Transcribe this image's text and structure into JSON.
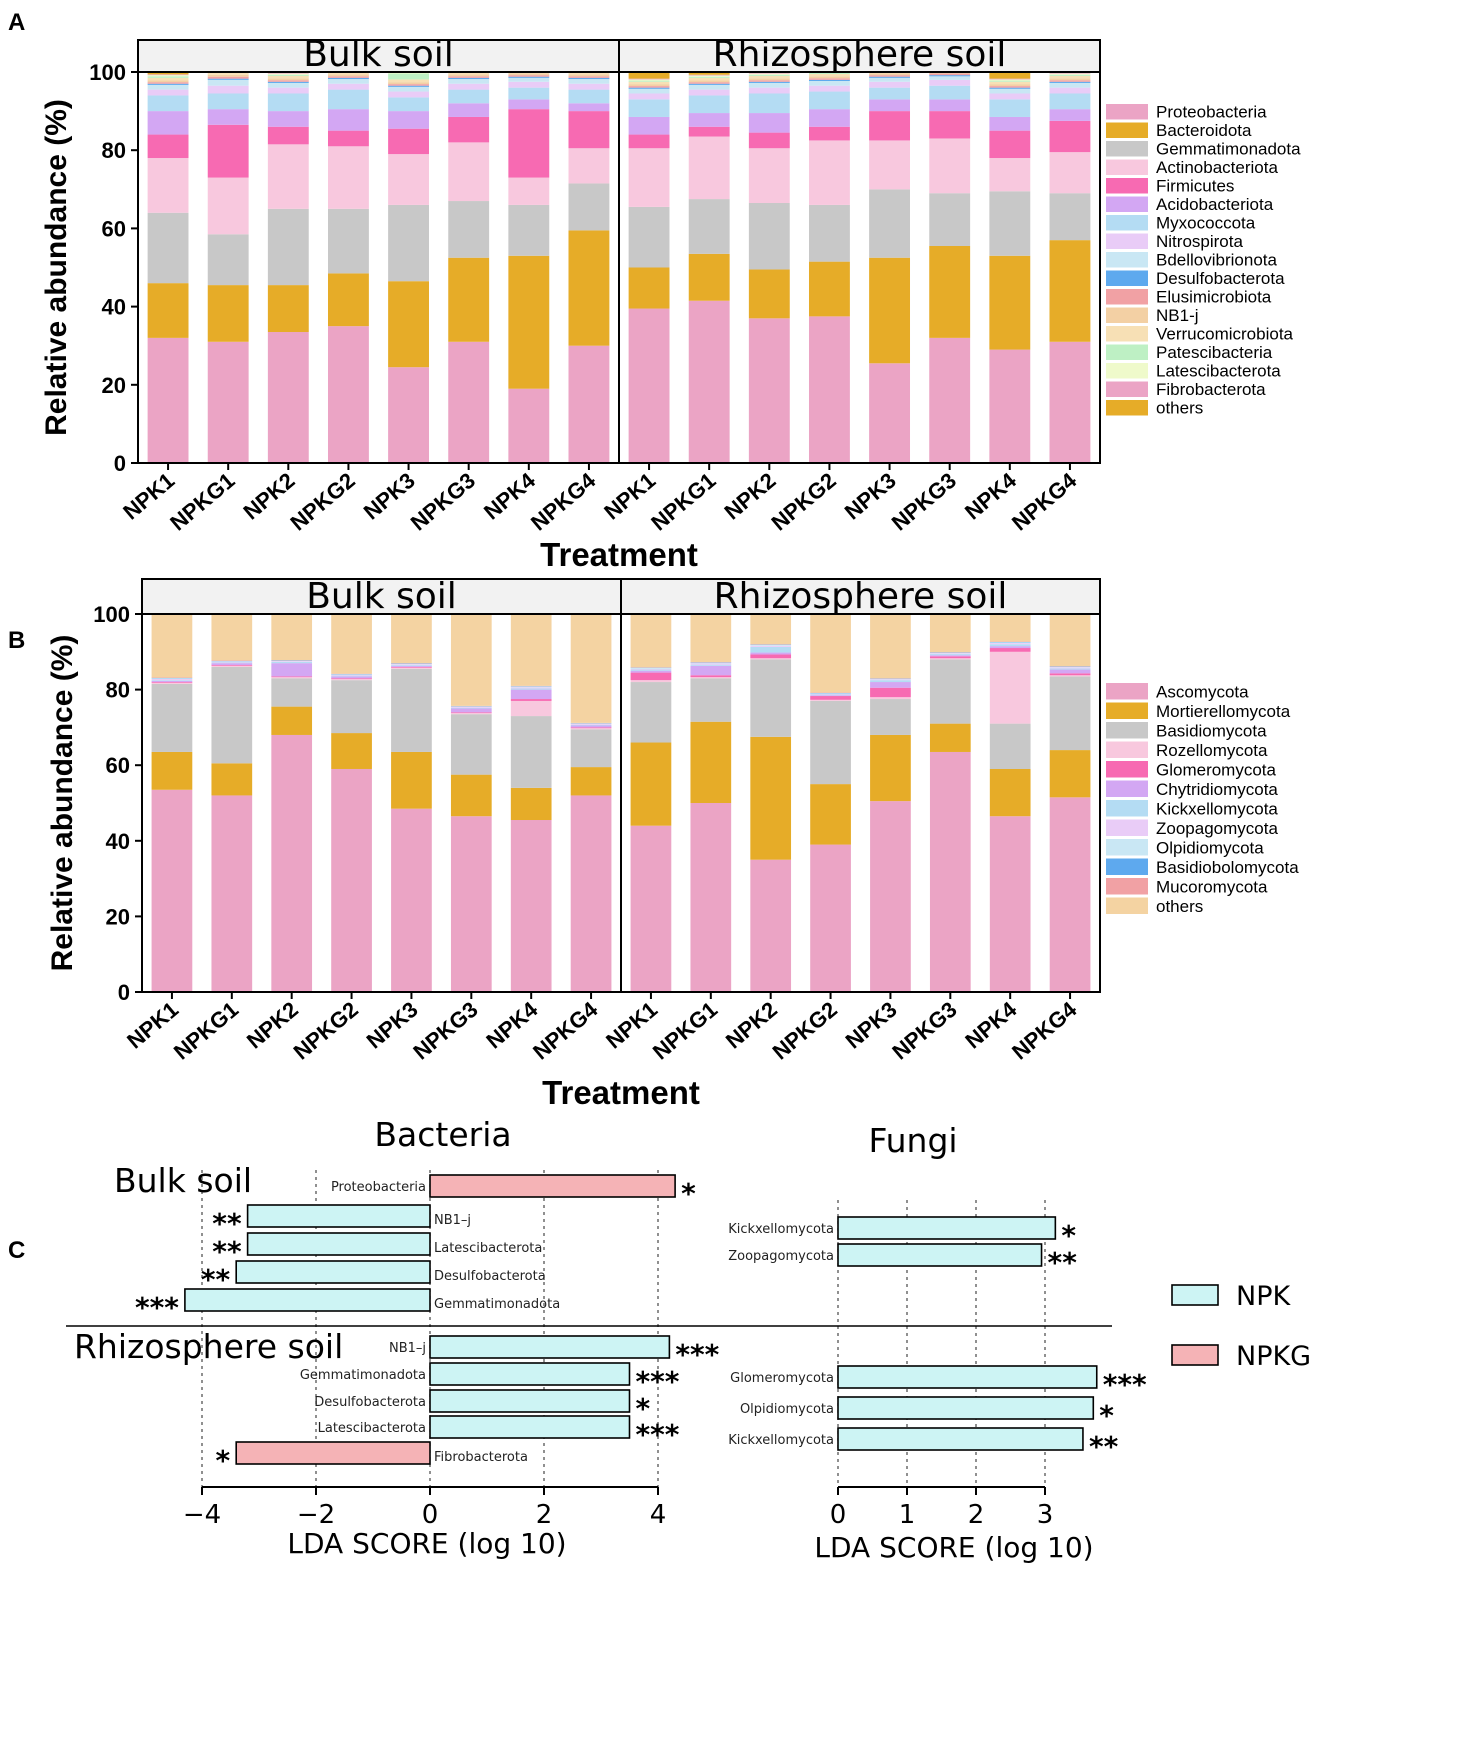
{
  "panels": {
    "a": "A",
    "b": "B",
    "c": "C"
  },
  "colors": {
    "bact": [
      "#EBA4C5",
      "#E6AC28",
      "#C8C8C8",
      "#F8C8DE",
      "#F76AB2",
      "#D3A7F3",
      "#B4DCF3",
      "#E9CCF7",
      "#C9E7F4",
      "#5EA9EE",
      "#F1A1A4",
      "#F3D0A4",
      "#F7E0B5",
      "#BEF0C4",
      "#EFFACB",
      "#EBA4C5",
      "#E6AC28"
    ],
    "fung": [
      "#EBA4C5",
      "#E6AC28",
      "#C8C8C8",
      "#F8C8DE",
      "#F76AB2",
      "#D3A7F3",
      "#B4DCF3",
      "#E9CCF7",
      "#C9E7F4",
      "#5EA9EE",
      "#F1A1A4",
      "#F4D3A2"
    ],
    "npk": "#CDF4F4",
    "npkg": "#F5B3B6"
  },
  "chart_data": [
    {
      "type": "bar",
      "subtype": "stacked-percent",
      "panel": "A",
      "facets": [
        "Bulk soil",
        "Rhizosphere soil"
      ],
      "categories": [
        "NPK1",
        "NPKG1",
        "NPK2",
        "NPKG2",
        "NPK3",
        "NPKG3",
        "NPK4",
        "NPKG4"
      ],
      "xlabel": "Treatment",
      "ylabel": "Relative abundance (%)",
      "ylim": [
        0,
        100
      ],
      "yticks": [
        0,
        20,
        40,
        60,
        80,
        100
      ],
      "legend": [
        "Proteobacteria",
        "Bacteroidota",
        "Gemmatimonadota",
        "Actinobacteriota",
        "Firmicutes",
        "Acidobacteriota",
        "Myxococcota",
        "Nitrospirota",
        "Bdellovibrionota",
        "Desulfobacterota",
        "Elusimicrobiota",
        "NB1-j",
        "Verrucomicrobiota",
        "Patescibacteria",
        "Latescibacterota",
        "Fibrobacterota",
        "others"
      ],
      "values": {
        "Bulk soil": [
          [
            32,
            14,
            18,
            14,
            6,
            6,
            4,
            1.5,
            1.2,
            0.3,
            0.4,
            0.5,
            0.6,
            0.4,
            0.3,
            0.2,
            0.6
          ],
          [
            31,
            14.5,
            13,
            14.5,
            13.5,
            4,
            4,
            2,
            1.5,
            0.3,
            0.5,
            0.5,
            0.6,
            0.3,
            0.3,
            0.2,
            0.3
          ],
          [
            33.5,
            12,
            19.5,
            16.5,
            4.5,
            4,
            4.5,
            1.5,
            1.2,
            0.3,
            0.4,
            0.5,
            0.6,
            0.3,
            0.3,
            0.2,
            0.3
          ],
          [
            35,
            13.5,
            16.5,
            16,
            4,
            5.5,
            5,
            1.5,
            1.2,
            0.3,
            0.4,
            0.5,
            0.6,
            0.3,
            0.3,
            0.2,
            0.2
          ],
          [
            24.5,
            22,
            19.5,
            13,
            6.5,
            4.5,
            3.5,
            1.5,
            1.2,
            0.3,
            0.4,
            0.5,
            0.7,
            1.5,
            0.3,
            0.2,
            0.2
          ],
          [
            31,
            21.5,
            14.5,
            15,
            6.5,
            3.5,
            3.5,
            1.5,
            1.2,
            0.3,
            0.4,
            0.5,
            0.6,
            0.5,
            0.3,
            0.2,
            0.1
          ],
          [
            19,
            34,
            13,
            7,
            17.5,
            2.5,
            3,
            1.5,
            1.0,
            0.3,
            0.4,
            0.5,
            0.6,
            0.3,
            0.3,
            0.2,
            0
          ],
          [
            30,
            29.5,
            12,
            9,
            9.5,
            2,
            3.5,
            1.5,
            1.2,
            0.3,
            0.4,
            0.5,
            0.6,
            0.3,
            0.3,
            0.2,
            0.1
          ]
        ],
        "Rhizosphere soil": [
          [
            39.5,
            10.5,
            15.5,
            15,
            3.5,
            4.5,
            4.5,
            1.5,
            1.2,
            0.3,
            0.4,
            0.5,
            0.6,
            0.3,
            0.3,
            0.2,
            2.3
          ],
          [
            41.5,
            12,
            14,
            16,
            2.5,
            3.5,
            4.5,
            1.5,
            1.2,
            0.3,
            0.4,
            0.5,
            0.6,
            0.3,
            0.3,
            0.2,
            1.3
          ],
          [
            37,
            12.5,
            17,
            14,
            4,
            5,
            5,
            1.5,
            1.2,
            0.3,
            0.4,
            0.5,
            0.6,
            0.3,
            0.3,
            0.2,
            0.6
          ],
          [
            37.5,
            14,
            14.5,
            16.5,
            3.5,
            4.5,
            4.5,
            1.5,
            1.2,
            0.3,
            0.4,
            0.5,
            0.6,
            0.3,
            0.3,
            0.2,
            0.3
          ],
          [
            25.5,
            27,
            17.5,
            12.5,
            7.5,
            3,
            3,
            1.5,
            1.0,
            0.3,
            0.4,
            0.5,
            0.6,
            0.3,
            0.3,
            0.2,
            0
          ],
          [
            32,
            23.5,
            13.5,
            14,
            7,
            3,
            3.5,
            1.5,
            0.9,
            0.3,
            0.4,
            0.5,
            0.6,
            0.3,
            0.3,
            0.2,
            0
          ],
          [
            29,
            24,
            16.5,
            8.5,
            7,
            3.5,
            4.5,
            1.5,
            1.2,
            0.3,
            0.4,
            0.5,
            0.6,
            0.3,
            0.3,
            0.2,
            2.0
          ],
          [
            31,
            26,
            12,
            10.5,
            8,
            3,
            4,
            1.5,
            1.2,
            0.3,
            0.4,
            0.5,
            0.6,
            0.3,
            0.3,
            0.2,
            0.5
          ]
        ]
      }
    },
    {
      "type": "bar",
      "subtype": "stacked-percent",
      "panel": "B",
      "facets": [
        "Bulk soil",
        "Rhizosphere soil"
      ],
      "categories": [
        "NPK1",
        "NPKG1",
        "NPK2",
        "NPKG2",
        "NPK3",
        "NPKG3",
        "NPK4",
        "NPKG4"
      ],
      "xlabel": "Treatment",
      "ylabel": "Relative abundance (%)",
      "ylim": [
        0,
        100
      ],
      "yticks": [
        0,
        20,
        40,
        60,
        80,
        100
      ],
      "legend": [
        "Ascomycota",
        "Mortierellomycota",
        "Basidiomycota",
        "Rozellomycota",
        "Glomeromycota",
        "Chytridiomycota",
        "Kickxellomycota",
        "Zoopagomycota",
        "Olpidiomycota",
        "Basidiobolomycota",
        "Mucoromycota",
        "others"
      ],
      "values": {
        "Bulk soil": [
          [
            53.5,
            10,
            18,
            0.3,
            0.2,
            0.3,
            0.2,
            0.3,
            0.2,
            0.1,
            0.1,
            16.8
          ],
          [
            52,
            8.5,
            25.5,
            0.3,
            0.2,
            0.5,
            0.2,
            0.2,
            0.1,
            0.1,
            0.1,
            12.3
          ],
          [
            68,
            7.5,
            7.5,
            0.3,
            0.2,
            3.5,
            0.3,
            0.2,
            0.1,
            0.1,
            0.1,
            12.2
          ],
          [
            59,
            9.5,
            14,
            0.3,
            0.2,
            0.5,
            0.2,
            0.2,
            0.1,
            0.1,
            0.1,
            15.8
          ],
          [
            48.5,
            15,
            22,
            0.3,
            0.2,
            0.3,
            0.2,
            0.2,
            0.1,
            0.1,
            0.1,
            13.0
          ],
          [
            46.5,
            11,
            16,
            0.3,
            0.2,
            1.0,
            0.2,
            0.2,
            0.1,
            0.1,
            0.1,
            24.3
          ],
          [
            45.5,
            8.5,
            19,
            4,
            0.5,
            2.5,
            0.3,
            0.3,
            0.2,
            0.1,
            0.1,
            19.0
          ],
          [
            52,
            7.5,
            10,
            0.3,
            0.2,
            0.5,
            0.2,
            0.2,
            0.1,
            0.1,
            0.1,
            28.8
          ]
        ],
        "Rhizosphere soil": [
          [
            44,
            22,
            16,
            0.5,
            2,
            0.5,
            0.3,
            0.2,
            0.2,
            0.1,
            0.1,
            14.1
          ],
          [
            50,
            21.5,
            11.5,
            0.3,
            0.5,
            2.5,
            0.3,
            0.3,
            0.2,
            0.1,
            0.1,
            12.7
          ],
          [
            35,
            32.5,
            20.5,
            0.3,
            1,
            0.5,
            1.5,
            0.3,
            0.2,
            0.1,
            0.1,
            8.0
          ],
          [
            39,
            16,
            22,
            0.3,
            1,
            0.2,
            0.2,
            0.2,
            0.1,
            0.1,
            0.1,
            20.8
          ],
          [
            50.5,
            17.5,
            9.5,
            0.5,
            2.5,
            1.5,
            0.5,
            0.2,
            0.1,
            0.1,
            0.1,
            17.0
          ],
          [
            63.5,
            7.5,
            17,
            0.3,
            0.5,
            0.3,
            0.3,
            0.2,
            0.1,
            0.1,
            0.1,
            10.1
          ],
          [
            46.5,
            12.5,
            12,
            19,
            1,
            0.5,
            0.5,
            0.3,
            0.2,
            0.1,
            0.1,
            7.3
          ],
          [
            51.5,
            12.5,
            19.5,
            0.3,
            0.5,
            1.0,
            0.3,
            0.3,
            0.1,
            0.1,
            0.1,
            13.8
          ]
        ]
      }
    },
    {
      "type": "bar",
      "subtype": "horizontal-lda",
      "panel": "C",
      "title": "Bacteria",
      "xlabel": "LDA SCORE (log 10)",
      "xlim": [
        -4.6,
        5.0
      ],
      "xticks": [
        -4,
        -2,
        0,
        2,
        4
      ],
      "sections": [
        {
          "label": "Bulk soil",
          "bars": [
            {
              "feature": "Proteobacteria",
              "value": 4.3,
              "group": "NPKG",
              "sig": "*"
            },
            {
              "feature": "NB1–j",
              "value": -3.2,
              "group": "NPK",
              "sig": "**"
            },
            {
              "feature": "Latescibacterota",
              "value": -3.2,
              "group": "NPK",
              "sig": "**"
            },
            {
              "feature": "Desulfobacterota",
              "value": -3.4,
              "group": "NPK",
              "sig": "**"
            },
            {
              "feature": "Gemmatimonadota",
              "value": -4.3,
              "group": "NPK",
              "sig": "***"
            }
          ]
        },
        {
          "label": "Rhizosphere soil",
          "bars": [
            {
              "feature": "NB1–j",
              "value": 4.2,
              "group": "NPK",
              "sig": "***"
            },
            {
              "feature": "Gemmatimonadota",
              "value": 3.5,
              "group": "NPK",
              "sig": "***"
            },
            {
              "feature": "Desulfobacterota",
              "value": 3.5,
              "group": "NPK",
              "sig": "*"
            },
            {
              "feature": "Latescibacterota",
              "value": 3.5,
              "group": "NPK",
              "sig": "***"
            },
            {
              "feature": "Fibrobacterota",
              "value": -3.4,
              "group": "NPKG",
              "sig": "*"
            }
          ]
        }
      ]
    },
    {
      "type": "bar",
      "subtype": "horizontal-lda",
      "panel": "C",
      "title": "Fungi",
      "xlabel": "LDA SCORE (log 10)",
      "xlim": [
        0,
        3.8
      ],
      "xticks": [
        0,
        1,
        2,
        3
      ],
      "sections": [
        {
          "label": "Bulk soil",
          "bars": [
            {
              "feature": "Kickxellomycota",
              "value": 3.15,
              "group": "NPK",
              "sig": "*"
            },
            {
              "feature": "Zoopagomycota",
              "value": 2.95,
              "group": "NPK",
              "sig": "**"
            }
          ]
        },
        {
          "label": "Rhizosphere soil",
          "bars": [
            {
              "feature": "Glomeromycota",
              "value": 3.75,
              "group": "NPK",
              "sig": "***"
            },
            {
              "feature": "Olpidiomycota",
              "value": 3.7,
              "group": "NPK",
              "sig": "*"
            },
            {
              "feature": "Kickxellomycota",
              "value": 3.55,
              "group": "NPK",
              "sig": "**"
            }
          ]
        }
      ]
    }
  ],
  "legend_c": [
    {
      "label": "NPK",
      "group": "NPK"
    },
    {
      "label": "NPKG",
      "group": "NPKG"
    }
  ]
}
